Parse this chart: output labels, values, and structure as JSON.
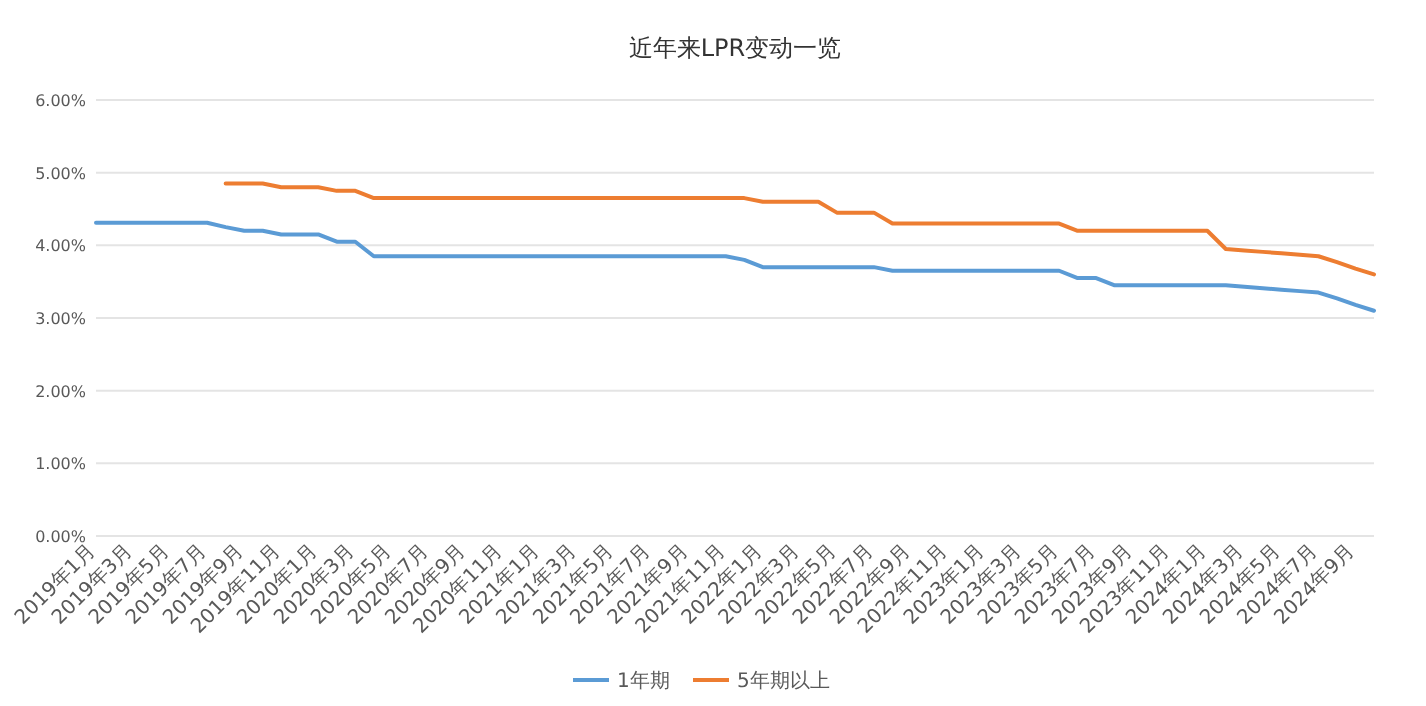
{
  "chart_data": {
    "type": "line",
    "title": "近年来LPR变动一览",
    "categories": [
      "2019年1月",
      null,
      "2019年3月",
      null,
      "2019年5月",
      null,
      "2019年7月",
      null,
      "2019年9月",
      null,
      "2019年11月",
      null,
      "2020年1月",
      null,
      "2020年3月",
      null,
      "2020年5月",
      null,
      "2020年7月",
      null,
      "2020年9月",
      null,
      "2020年11月",
      null,
      "2021年1月",
      null,
      "2021年3月",
      null,
      "2021年5月",
      null,
      "2021年7月",
      null,
      "2021年9月",
      null,
      "2021年11月",
      null,
      "2022年1月",
      null,
      "2022年3月",
      null,
      "2022年5月",
      null,
      "2022年7月",
      null,
      "2022年9月",
      null,
      "2022年11月",
      null,
      "2023年1月",
      null,
      "2023年3月",
      null,
      "2023年5月",
      null,
      "2023年7月",
      null,
      "2023年9月",
      null,
      "2023年11月",
      null,
      "2024年1月",
      null,
      "2024年3月",
      null,
      "2024年5月",
      null,
      "2024年7月",
      null,
      "2024年9月",
      null
    ],
    "series": [
      {
        "name": "1年期",
        "color": "#5b9bd5",
        "values": [
          4.31,
          4.31,
          4.31,
          4.31,
          4.31,
          4.31,
          4.31,
          4.25,
          4.2,
          4.2,
          4.15,
          4.15,
          4.15,
          4.05,
          4.05,
          3.85,
          3.85,
          3.85,
          3.85,
          3.85,
          3.85,
          3.85,
          3.85,
          3.85,
          3.85,
          3.85,
          3.85,
          3.85,
          3.85,
          3.85,
          3.85,
          3.85,
          3.85,
          3.85,
          3.85,
          3.8,
          3.7,
          3.7,
          3.7,
          3.7,
          3.7,
          3.7,
          3.7,
          3.65,
          3.65,
          3.65,
          3.65,
          3.65,
          3.65,
          3.65,
          3.65,
          3.65,
          3.65,
          3.55,
          3.55,
          3.45,
          3.45,
          3.45,
          3.45,
          3.45,
          3.45,
          3.45,
          3.43,
          3.41,
          3.39,
          3.37,
          3.35,
          3.27,
          3.18,
          3.1
        ]
      },
      {
        "name": "5年期以上",
        "color": "#ed7d31",
        "values": [
          null,
          null,
          null,
          null,
          null,
          null,
          null,
          4.85,
          4.85,
          4.85,
          4.8,
          4.8,
          4.8,
          4.75,
          4.75,
          4.65,
          4.65,
          4.65,
          4.65,
          4.65,
          4.65,
          4.65,
          4.65,
          4.65,
          4.65,
          4.65,
          4.65,
          4.65,
          4.65,
          4.65,
          4.65,
          4.65,
          4.65,
          4.65,
          4.65,
          4.65,
          4.6,
          4.6,
          4.6,
          4.6,
          4.45,
          4.45,
          4.45,
          4.3,
          4.3,
          4.3,
          4.3,
          4.3,
          4.3,
          4.3,
          4.3,
          4.3,
          4.3,
          4.2,
          4.2,
          4.2,
          4.2,
          4.2,
          4.2,
          4.2,
          4.2,
          3.95,
          3.93,
          3.91,
          3.89,
          3.87,
          3.85,
          3.77,
          3.68,
          3.6
        ]
      }
    ],
    "ylim": [
      0,
      6
    ],
    "yticks": [
      {
        "value": 0,
        "label": "0.00%"
      },
      {
        "value": 1,
        "label": "1.00%"
      },
      {
        "value": 2,
        "label": "2.00%"
      },
      {
        "value": 3,
        "label": "3.00%"
      },
      {
        "value": 4,
        "label": "4.00%"
      },
      {
        "value": 5,
        "label": "5.00%"
      },
      {
        "value": 6,
        "label": "6.00%"
      }
    ],
    "grid": "y",
    "legend": "bottom",
    "marker": "none",
    "line_style": "solid"
  }
}
